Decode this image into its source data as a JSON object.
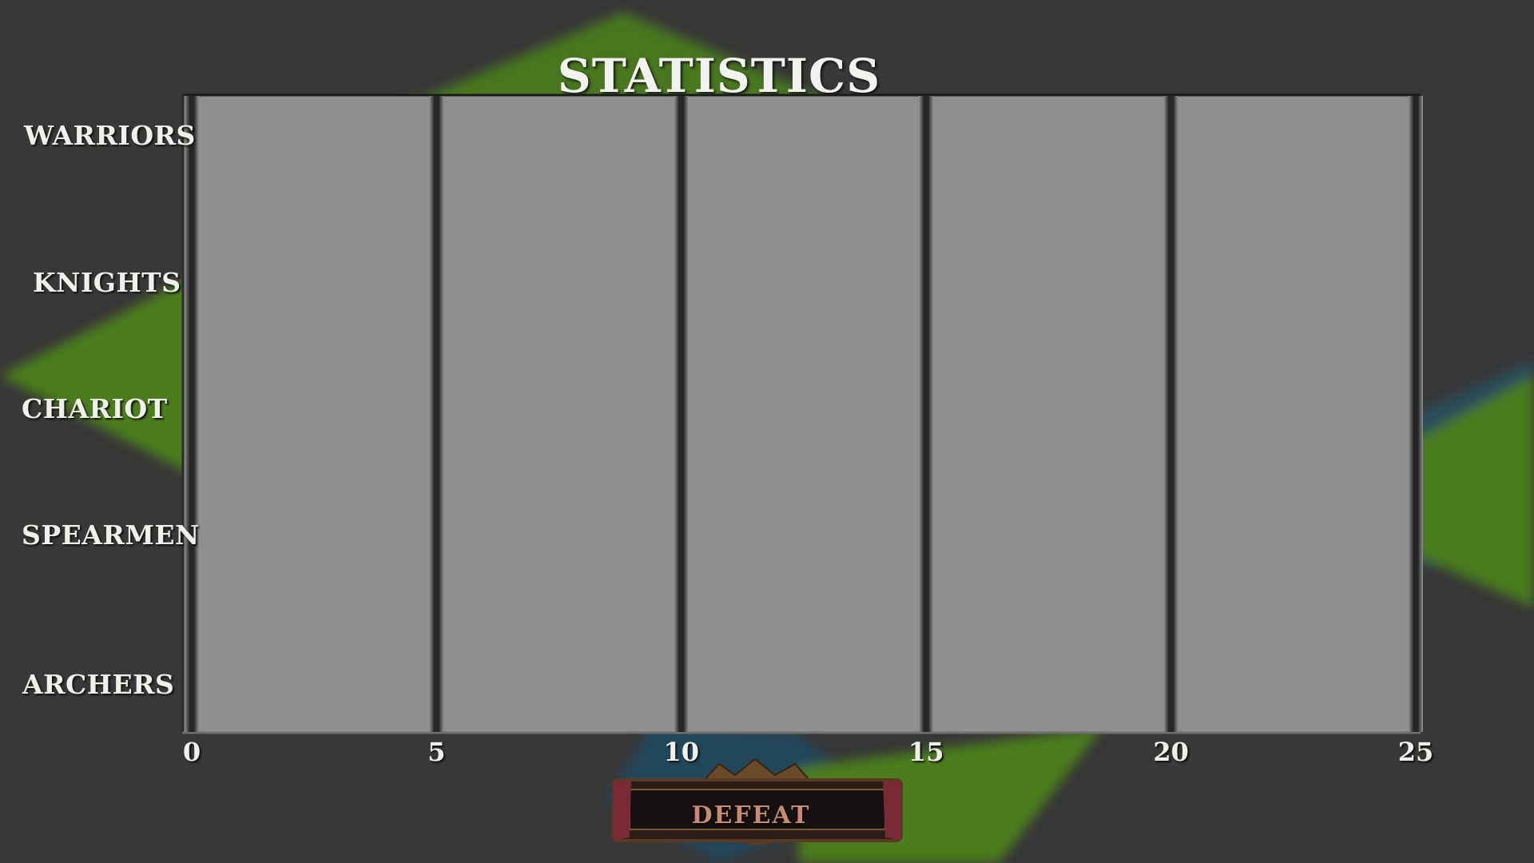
{
  "screen": {
    "title": "STATISTICS",
    "result_label": "DEFEAT"
  },
  "colors": {
    "background": "#383838",
    "grass": "#4a7a1c",
    "plot_area": "#8f8f8f",
    "gridline": "#1e1e1e",
    "text": "#f0f0ea",
    "defeat_text": "#c98a72"
  },
  "chart_data": {
    "type": "bar",
    "orientation": "horizontal",
    "categories": [
      "WARRIORS",
      "KNIGHTS",
      "CHARIOT",
      "SPEARMEN",
      "ARCHERS"
    ],
    "values": [
      0,
      0,
      0,
      0,
      0
    ],
    "x_ticks": [
      "0",
      "5",
      "10",
      "15",
      "20",
      "25"
    ],
    "xlim": [
      0,
      25
    ],
    "grid": true
  }
}
